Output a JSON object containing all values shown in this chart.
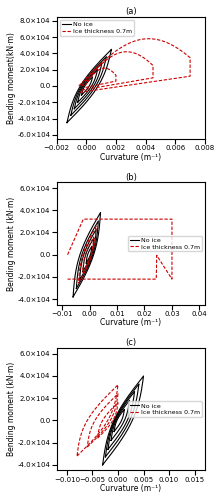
{
  "title_a": "(a)",
  "title_b": "(b)",
  "title_c": "(c)",
  "ylabel_a": "Bending moment(kN·m)",
  "ylabel_bc": "Bending moment (kN·m)",
  "xlabel": "Curvature (m⁻¹)",
  "legend_no_ice": "No ice",
  "legend_ice": "Ice thickness 0.7m",
  "panel_a": {
    "xlim": [
      -0.002,
      0.008
    ],
    "ylim": [
      -65000.0,
      85000.0
    ],
    "xticks": [
      -0.002,
      0.0,
      0.002,
      0.004,
      0.006,
      0.008
    ],
    "yticks": [
      -60000.0,
      -40000.0,
      -20000.0,
      0,
      20000.0,
      40000.0,
      60000.0,
      80000.0
    ]
  },
  "panel_b": {
    "xlim": [
      -0.012,
      0.042
    ],
    "ylim": [
      -45000.0,
      65000.0
    ],
    "xticks": [
      -0.01,
      0.0,
      0.01,
      0.02,
      0.03,
      0.04
    ],
    "yticks": [
      -40000.0,
      -20000.0,
      0,
      20000.0,
      40000.0,
      60000.0
    ]
  },
  "panel_c": {
    "xlim": [
      -0.012,
      0.017
    ],
    "ylim": [
      -45000.0,
      65000.0
    ],
    "xticks": [
      -0.01,
      -0.005,
      0.0,
      0.005,
      0.01,
      0.015
    ],
    "yticks": [
      -40000.0,
      -20000.0,
      0,
      20000.0,
      40000.0,
      60000.0
    ]
  },
  "black_color": "#000000",
  "red_color": "#cc0000",
  "line_width": 0.8,
  "fontsize_tick": 5,
  "fontsize_label": 5.5,
  "fontsize_legend": 4.5,
  "fontsize_title": 6
}
